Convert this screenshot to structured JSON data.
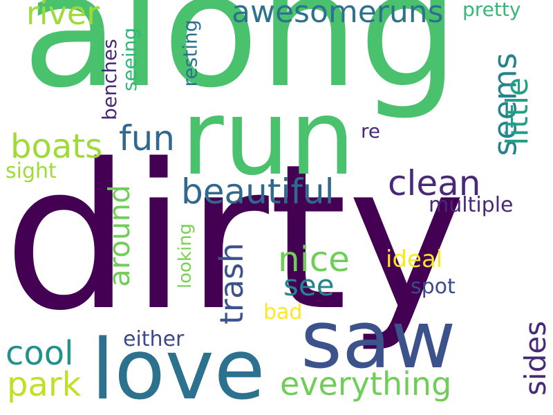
{
  "words": [
    {
      "text": "dirty",
      "color": "#440154"
    },
    {
      "text": "along",
      "color": "#4ac16d"
    },
    {
      "text": "run",
      "color": "#4ac16d"
    },
    {
      "text": "saw",
      "color": "#3b528b"
    },
    {
      "text": "love",
      "color": "#2c728e"
    },
    {
      "text": "awesomeruns",
      "color": "#2c728e"
    },
    {
      "text": "river",
      "color": "#a0da39"
    },
    {
      "text": "pretty",
      "color": "#35b779"
    },
    {
      "text": "boats",
      "color": "#a0da39"
    },
    {
      "text": "fun",
      "color": "#31688e"
    },
    {
      "text": "beautiful",
      "color": "#31688e"
    },
    {
      "text": "clean",
      "color": "#482878"
    },
    {
      "text": "seems",
      "color": "#26828e"
    },
    {
      "text": "little",
      "color": "#1fa187"
    },
    {
      "text": "re",
      "color": "#482878"
    },
    {
      "text": "benches",
      "color": "#482878"
    },
    {
      "text": "seeing",
      "color": "#35b779"
    },
    {
      "text": "resting",
      "color": "#2c728e"
    },
    {
      "text": "sight",
      "color": "#a0da39"
    },
    {
      "text": "around",
      "color": "#6ece58"
    },
    {
      "text": "multiple",
      "color": "#482878"
    },
    {
      "text": "nice",
      "color": "#6ece58"
    },
    {
      "text": "trash",
      "color": "#3b528b"
    },
    {
      "text": "see",
      "color": "#26828e"
    },
    {
      "text": "ideal",
      "color": "#fde725"
    },
    {
      "text": "looking",
      "color": "#7ad151"
    },
    {
      "text": "spot",
      "color": "#3e4989"
    },
    {
      "text": "bad",
      "color": "#fde725"
    },
    {
      "text": "cool",
      "color": "#21918c"
    },
    {
      "text": "either",
      "color": "#3e4989"
    },
    {
      "text": "park",
      "color": "#c2df23"
    },
    {
      "text": "everything",
      "color": "#6ece58"
    },
    {
      "text": "sides",
      "color": "#482878"
    }
  ]
}
